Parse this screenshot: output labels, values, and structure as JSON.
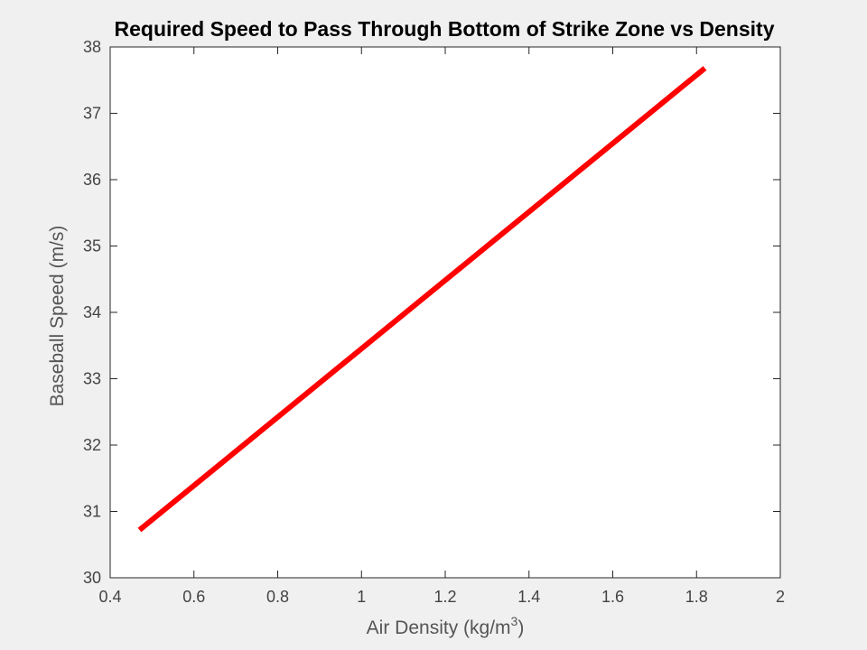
{
  "chart_data": {
    "type": "line",
    "title": "Required Speed to Pass Through Bottom of Strike Zone vs Density",
    "xlabel": {
      "base": "Air Density (kg/m",
      "superscript": "3",
      "suffix": ")"
    },
    "ylabel": "Baseball Speed (m/s)",
    "xlim": [
      0.4,
      2
    ],
    "ylim": [
      30,
      38
    ],
    "xticks": [
      0.4,
      0.6,
      0.8,
      1,
      1.2,
      1.4,
      1.6,
      1.8,
      2
    ],
    "xtick_labels": [
      "0.4",
      "0.6",
      "0.8",
      "1",
      "1.2",
      "1.4",
      "1.6",
      "1.8",
      "2"
    ],
    "yticks": [
      30,
      31,
      32,
      33,
      34,
      35,
      36,
      37,
      38
    ],
    "ytick_labels": [
      "30",
      "31",
      "32",
      "33",
      "34",
      "35",
      "36",
      "37",
      "38"
    ],
    "grid": false,
    "series": [
      {
        "color": "#ff0000",
        "x": [
          0.47,
          1.82
        ],
        "y": [
          30.72,
          37.68
        ]
      }
    ]
  }
}
